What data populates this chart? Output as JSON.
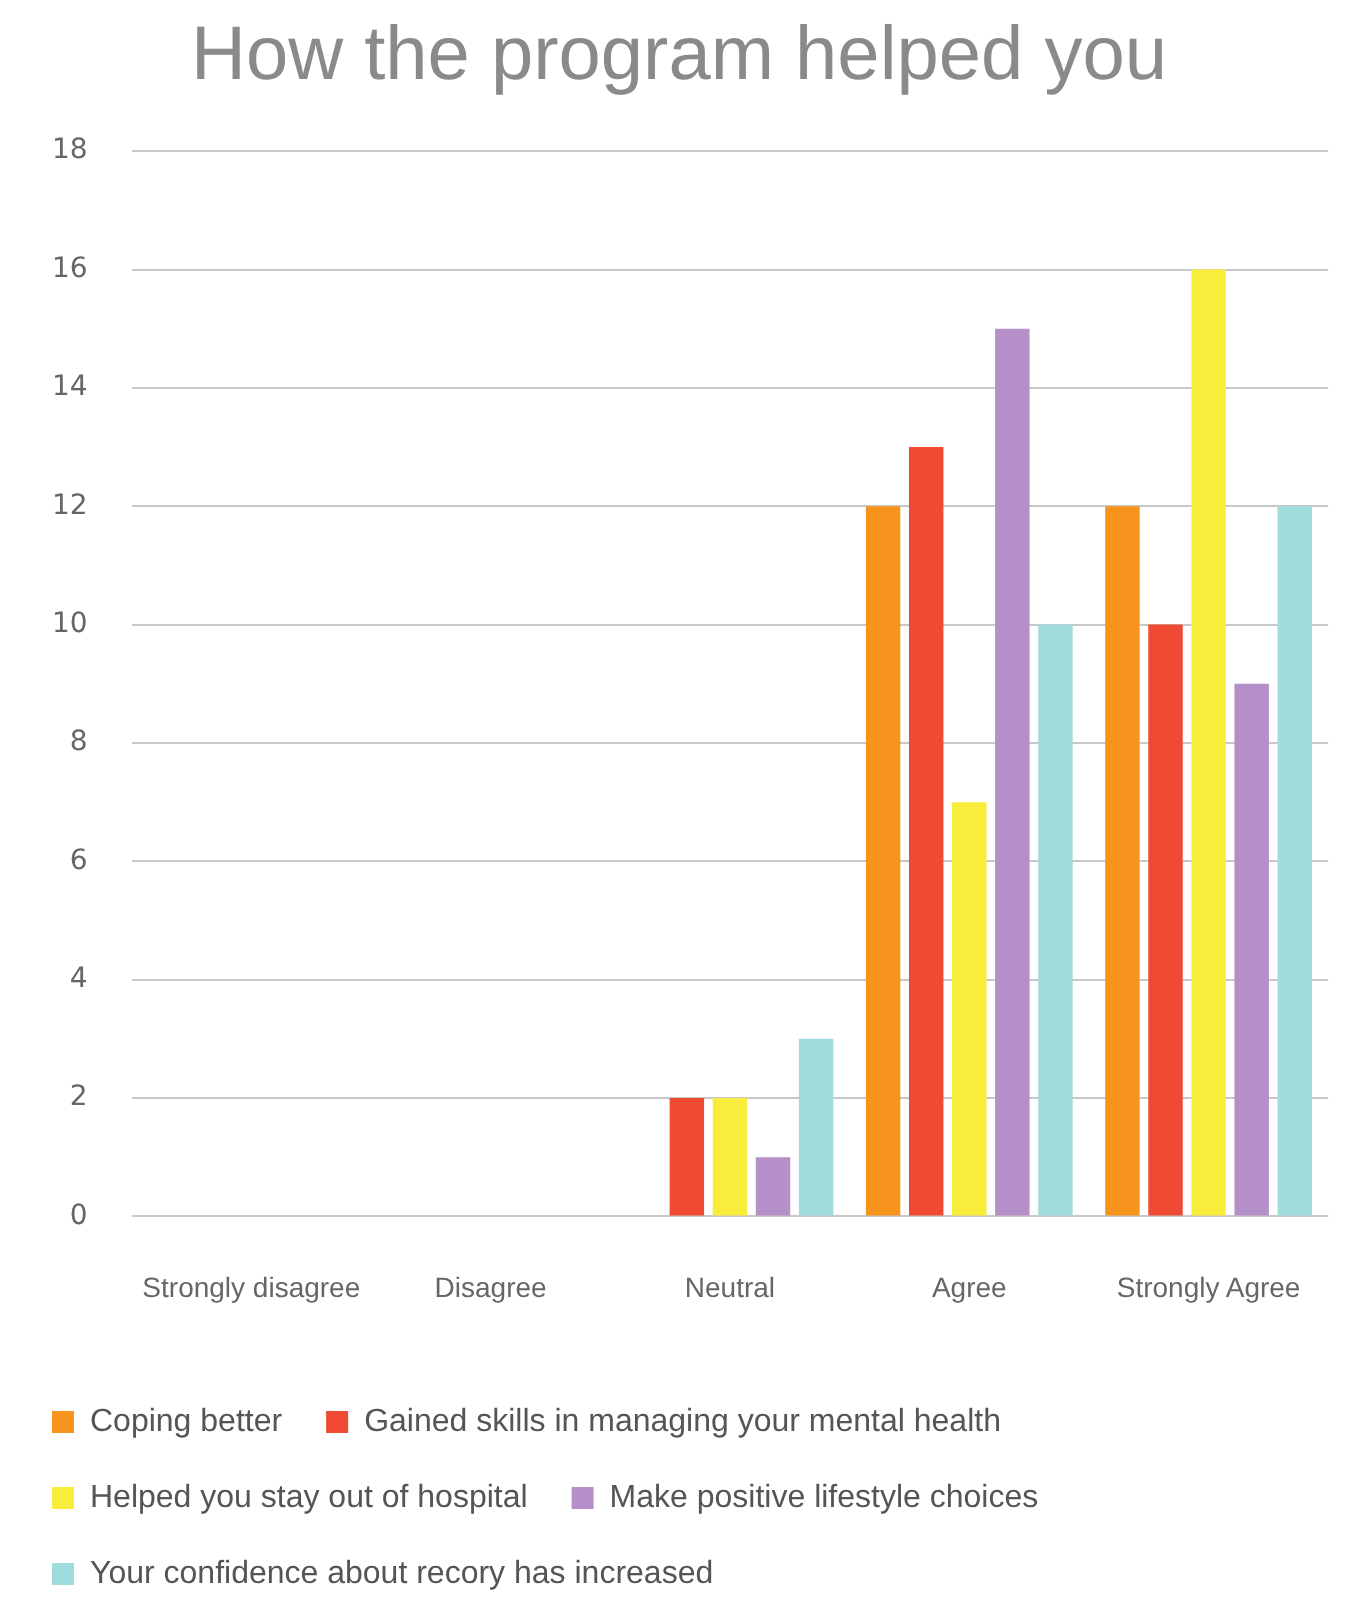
{
  "chart_data": {
    "type": "bar",
    "title": "How the program helped you",
    "categories": [
      "Strongly disagree",
      "Disagree",
      "Neutral",
      "Agree",
      "Strongly Agree"
    ],
    "series": [
      {
        "name": "Coping better",
        "color": "#f7941d",
        "values": [
          0,
          0,
          0,
          12,
          12
        ]
      },
      {
        "name": "Gained skills in managing your mental health",
        "color": "#ef4b34",
        "values": [
          0,
          0,
          2,
          13,
          10
        ]
      },
      {
        "name": "Helped you stay out of hospital",
        "color": "#f9ed3c",
        "values": [
          0,
          0,
          2,
          7,
          16
        ]
      },
      {
        "name": "Make positive lifestyle choices",
        "color": "#b48fc8",
        "values": [
          0,
          0,
          1,
          15,
          9
        ]
      },
      {
        "name": "Your confidence about recory has increased",
        "color": "#a0dcdc",
        "values": [
          0,
          0,
          3,
          10,
          12
        ]
      }
    ],
    "ylim": [
      0,
      18
    ],
    "yticks": [
      0,
      2,
      4,
      6,
      8,
      10,
      12,
      14,
      16,
      18
    ],
    "grid": "y",
    "legend": "bottom"
  }
}
